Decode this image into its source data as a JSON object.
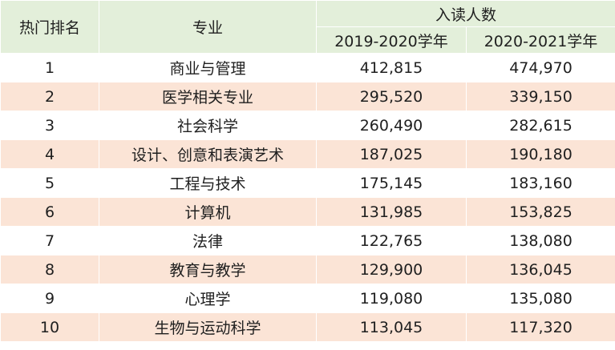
{
  "headers": {
    "rank": "热门排名",
    "major": "专业",
    "enrollment": "入读人数",
    "year1": "2019-2020学年",
    "year2": "2020-2021学年"
  },
  "rows": [
    {
      "rank": "1",
      "major": "商业与管理",
      "y1": "412,815",
      "y2": "474,970"
    },
    {
      "rank": "2",
      "major": "医学相关专业",
      "y1": "295,520",
      "y2": "339,150"
    },
    {
      "rank": "3",
      "major": "社会科学",
      "y1": "260,490",
      "y2": "282,615"
    },
    {
      "rank": "4",
      "major": "设计、创意和表演艺术",
      "y1": "187,025",
      "y2": "190,180"
    },
    {
      "rank": "5",
      "major": "工程与技术",
      "y1": "175,145",
      "y2": "183,160"
    },
    {
      "rank": "6",
      "major": "计算机",
      "y1": "131,985",
      "y2": "153,825"
    },
    {
      "rank": "7",
      "major": "法律",
      "y1": "122,765",
      "y2": "138,080"
    },
    {
      "rank": "8",
      "major": "教育与教学",
      "y1": "129,900",
      "y2": "136,045"
    },
    {
      "rank": "9",
      "major": "心理学",
      "y1": "119,080",
      "y2": "135,080"
    },
    {
      "rank": "10",
      "major": "生物与运动科学",
      "y1": "113,045",
      "y2": "117,320"
    }
  ]
}
